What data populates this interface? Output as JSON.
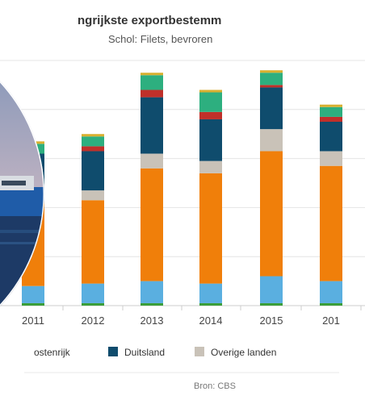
{
  "chart_data": {
    "type": "bar",
    "stacked": true,
    "title": "ngrijkste exportbestemm",
    "subtitle": "Schol: Filets, bevroren",
    "categories": [
      "2011",
      "2012",
      "2013",
      "2014",
      "2015",
      "201"
    ],
    "series": [
      {
        "name": "",
        "color": "#3a9e3a",
        "values": [
          1,
          1,
          1,
          1,
          1,
          1
        ]
      },
      {
        "name": "",
        "color": "#5aafe0",
        "values": [
          7,
          8,
          9,
          8,
          11,
          9
        ]
      },
      {
        "name": "",
        "color": "#f07f0a",
        "values": [
          36,
          34,
          46,
          45,
          51,
          47
        ]
      },
      {
        "name": "Overige landen",
        "color": "#c9c2b8",
        "values": [
          0,
          4,
          6,
          5,
          9,
          6
        ]
      },
      {
        "name": "Duitsland",
        "color": "#0f4c6d",
        "values": [
          18,
          16,
          23,
          17,
          17,
          12
        ]
      },
      {
        "name": "",
        "color": "#c0302a",
        "values": [
          0,
          2,
          3,
          3,
          1,
          2
        ]
      },
      {
        "name": "",
        "color": "#2daf7f",
        "values": [
          4,
          4,
          6,
          8,
          5,
          4
        ]
      },
      {
        "name": "",
        "color": "#d8b030",
        "values": [
          1,
          1,
          1,
          1,
          1,
          1
        ]
      }
    ],
    "legend": [
      "ostenrijk",
      "Duitsland",
      "Overige landen"
    ],
    "legend_colors": [
      "#2daf7f",
      "#0f4c6d",
      "#c9c2b8"
    ],
    "ylim": [
      0,
      100
    ],
    "grid": true,
    "source": "Bron: CBS"
  },
  "colors": {
    "grid": "#e4e4e4",
    "axis": "#cccccc"
  }
}
